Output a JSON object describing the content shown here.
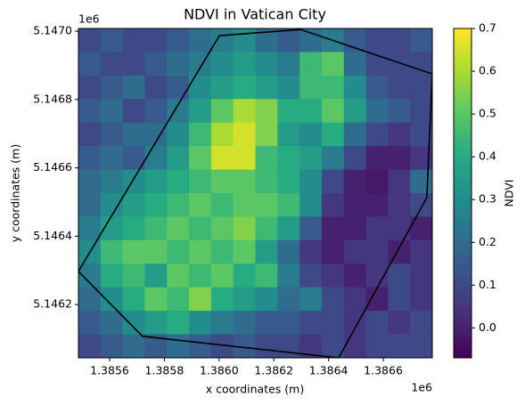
{
  "chart_data": {
    "type": "raster",
    "title": "NDVI in Vatican City",
    "x_label": "x coordinates (m)",
    "y_label": "y coordinates (m)",
    "x_offset_label": "1e6",
    "y_offset_label": "1e6",
    "colorbar_label": "NDVI",
    "colormap": "viridis",
    "xlim": [
      1385486,
      1386779
    ],
    "ylim": [
      5146044,
      5147008
    ],
    "xticks": [
      {
        "value": 1385600,
        "label": "1.3856"
      },
      {
        "value": 1385800,
        "label": "1.3858"
      },
      {
        "value": 1386000,
        "label": "1.3860"
      },
      {
        "value": 1386200,
        "label": "1.3862"
      },
      {
        "value": 1386400,
        "label": "1.3864"
      },
      {
        "value": 1386600,
        "label": "1.3866"
      }
    ],
    "yticks": [
      {
        "value": 5146200,
        "label": "5.1462"
      },
      {
        "value": 5146400,
        "label": "5.1464"
      },
      {
        "value": 5146600,
        "label": "5.1466"
      },
      {
        "value": 5146800,
        "label": "5.1468"
      },
      {
        "value": 5147000,
        "label": "5.1470"
      }
    ],
    "clim": [
      -0.07,
      0.7
    ],
    "cticks": [
      {
        "value": 0,
        "label": "0.0"
      },
      0.1,
      0.2,
      0.3,
      0.4,
      0.5,
      0.6,
      0.7
    ],
    "z": [
      [
        0.1,
        0.15,
        0.1,
        0.1,
        0.15,
        0.2,
        0.25,
        0.3,
        0.2,
        0.15,
        0.2,
        0.25,
        0.15,
        0.1,
        0.1,
        0.15
      ],
      [
        0.15,
        0.1,
        0.1,
        0.15,
        0.2,
        0.25,
        0.3,
        0.35,
        0.3,
        0.25,
        0.45,
        0.5,
        0.2,
        0.1,
        0.1,
        0.1
      ],
      [
        0.1,
        0.15,
        0.2,
        0.1,
        0.15,
        0.3,
        0.35,
        0.4,
        0.35,
        0.3,
        0.45,
        0.45,
        0.3,
        0.15,
        0.1,
        0.1
      ],
      [
        0.15,
        0.2,
        0.1,
        0.15,
        0.25,
        0.35,
        0.5,
        0.6,
        0.55,
        0.4,
        0.4,
        0.5,
        0.35,
        0.2,
        0.15,
        0.1
      ],
      [
        0.1,
        0.15,
        0.2,
        0.2,
        0.3,
        0.45,
        0.6,
        0.65,
        0.55,
        0.35,
        0.3,
        0.4,
        0.2,
        0.1,
        0.05,
        0.1
      ],
      [
        0.15,
        0.2,
        0.15,
        0.25,
        0.35,
        0.5,
        0.65,
        0.65,
        0.45,
        0.4,
        0.35,
        0.25,
        0.1,
        0.0,
        0.0,
        0.05
      ],
      [
        0.2,
        0.25,
        0.3,
        0.35,
        0.4,
        0.45,
        0.5,
        0.5,
        0.45,
        0.4,
        0.3,
        0.1,
        0.0,
        -0.02,
        0.05,
        0.2
      ],
      [
        0.2,
        0.3,
        0.35,
        0.4,
        0.45,
        0.5,
        0.45,
        0.5,
        0.5,
        0.45,
        0.3,
        0.05,
        0.0,
        0.0,
        0.05,
        0.1
      ],
      [
        0.25,
        0.35,
        0.4,
        0.45,
        0.5,
        0.45,
        0.5,
        0.55,
        0.45,
        0.35,
        0.15,
        0.0,
        0.0,
        0.05,
        0.05,
        0.0
      ],
      [
        0.3,
        0.45,
        0.5,
        0.5,
        0.45,
        0.5,
        0.45,
        0.5,
        0.35,
        0.2,
        0.05,
        0.0,
        0.05,
        0.05,
        0.0,
        0.05
      ],
      [
        0.25,
        0.4,
        0.45,
        0.35,
        0.5,
        0.45,
        0.5,
        0.4,
        0.45,
        0.25,
        0.1,
        0.05,
        0.0,
        0.05,
        0.1,
        0.05
      ],
      [
        0.2,
        0.3,
        0.4,
        0.5,
        0.45,
        0.55,
        0.4,
        0.35,
        0.3,
        0.2,
        0.25,
        0.1,
        0.05,
        0.0,
        0.1,
        0.05
      ],
      [
        0.15,
        0.2,
        0.3,
        0.35,
        0.4,
        0.3,
        0.25,
        0.2,
        0.15,
        0.15,
        0.1,
        0.1,
        0.05,
        0.1,
        0.05,
        0.1
      ],
      [
        0.1,
        0.15,
        0.2,
        0.15,
        0.2,
        0.15,
        0.1,
        0.15,
        0.1,
        0.1,
        0.05,
        0.1,
        0.05,
        0.1,
        0.1,
        0.1
      ]
    ],
    "boundary": {
      "color": "#000000",
      "x": [
        1386001,
        1386297,
        1386779,
        1386759,
        1386437,
        1385720,
        1385486
      ],
      "y": [
        5146987,
        5147005,
        5146875,
        5146513,
        5146044,
        5146107,
        5146297
      ]
    }
  }
}
